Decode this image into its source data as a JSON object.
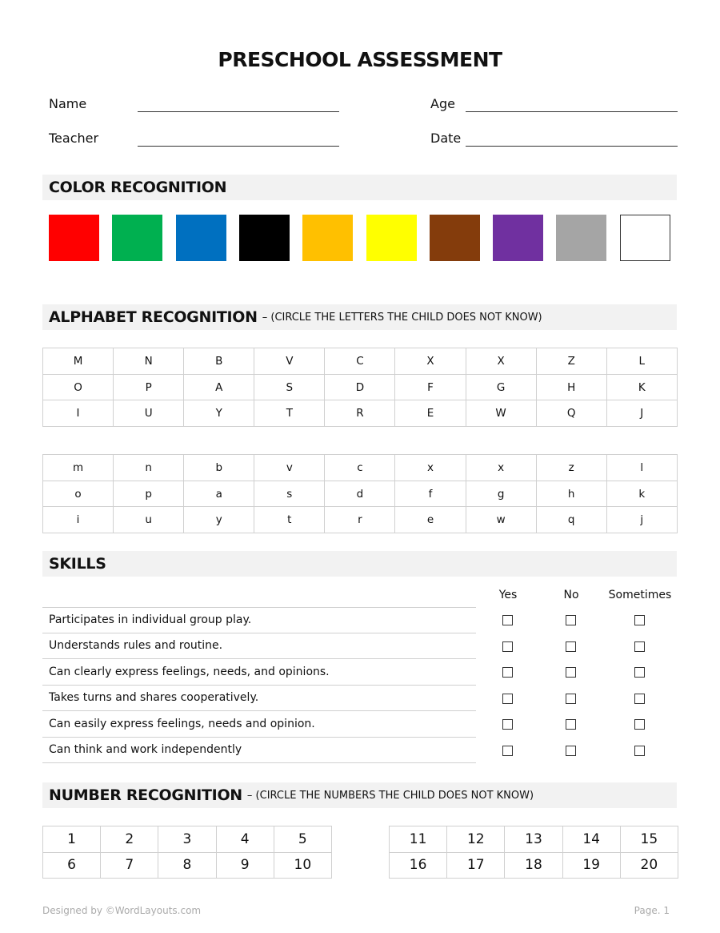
{
  "title": "PRESCHOOL ASSESSMENT",
  "fields": {
    "name": "Name",
    "age": "Age",
    "teacher": "Teacher",
    "date": "Date"
  },
  "color_section": {
    "heading": "COLOR RECOGNITION",
    "swatches": [
      "#ff0000",
      "#00b050",
      "#0070c0",
      "#000000",
      "#ffc000",
      "#ffff00",
      "#843c0c",
      "#7030a0",
      "#a5a5a5",
      "#ffffff"
    ]
  },
  "alphabet_section": {
    "heading": "ALPHABET RECOGNITION",
    "note": "– (CIRCLE THE LETTERS THE CHILD DOES NOT KNOW)",
    "uppercase": [
      [
        "M",
        "N",
        "B",
        "V",
        "C",
        "X",
        "X",
        "Z",
        "L"
      ],
      [
        "O",
        "P",
        "A",
        "S",
        "D",
        "F",
        "G",
        "H",
        "K"
      ],
      [
        "I",
        "U",
        "Y",
        "T",
        "R",
        "E",
        "W",
        "Q",
        "J"
      ]
    ],
    "lowercase": [
      [
        "m",
        "n",
        "b",
        "v",
        "c",
        "x",
        "x",
        "z",
        "l"
      ],
      [
        "o",
        "p",
        "a",
        "s",
        "d",
        "f",
        "g",
        "h",
        "k"
      ],
      [
        "i",
        "u",
        "y",
        "t",
        "r",
        "e",
        "w",
        "q",
        "j"
      ]
    ]
  },
  "skills_section": {
    "heading": "SKILLS",
    "columns": [
      "Yes",
      "No",
      "Sometimes"
    ],
    "items": [
      "Participates in individual group play.",
      "Understands rules and routine.",
      "Can clearly express feelings, needs, and opinions.",
      "Takes turns and shares cooperatively.",
      "Can easily express feelings, needs and opinion.",
      "Can think and work independently"
    ]
  },
  "number_section": {
    "heading": "NUMBER RECOGNITION",
    "note": "– (CIRCLE THE NUMBERS THE CHILD DOES NOT KNOW)",
    "left": [
      [
        "1",
        "2",
        "3",
        "4",
        "5"
      ],
      [
        "6",
        "7",
        "8",
        "9",
        "10"
      ]
    ],
    "right": [
      [
        "11",
        "12",
        "13",
        "14",
        "15"
      ],
      [
        "16",
        "17",
        "18",
        "19",
        "20"
      ]
    ]
  },
  "footer": {
    "credit": "Designed by ©WordLayouts.com",
    "page": "Page. 1"
  }
}
